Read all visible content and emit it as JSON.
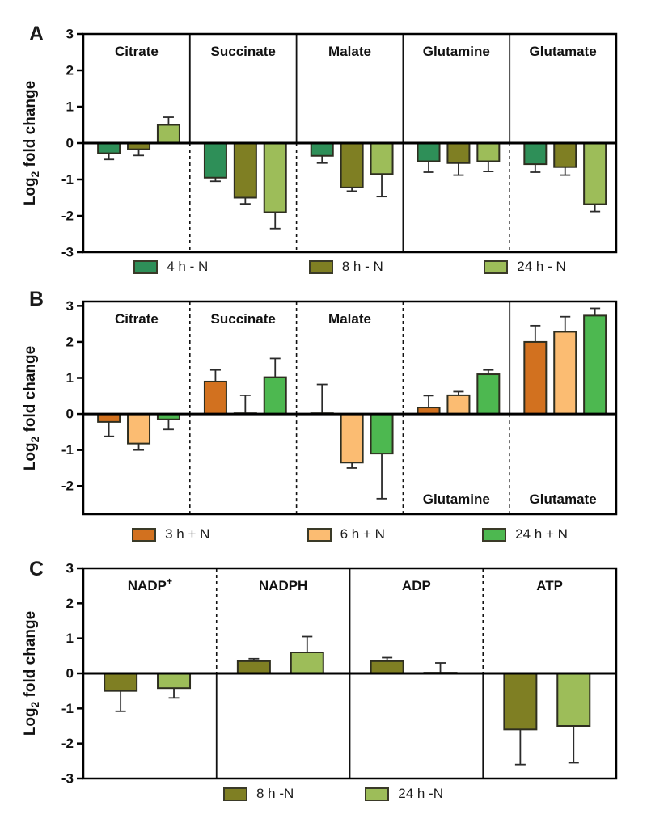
{
  "y_axis": {
    "word": "Log",
    "sub": "2",
    "rest": " fold change"
  },
  "chart_data": [
    {
      "type": "bar",
      "panel_label": "A",
      "ylabel": "Log2 fold change",
      "ylim": [
        -3,
        3
      ],
      "yticks": [
        3,
        2,
        1,
        0,
        -1,
        -2,
        -3
      ],
      "grid": false,
      "legend_position": "bottom",
      "categories": [
        {
          "name": "Citrate",
          "sup": "",
          "label_pos": "top"
        },
        {
          "name": "Succinate",
          "sup": "",
          "label_pos": "top"
        },
        {
          "name": "Malate",
          "sup": "",
          "label_pos": "top"
        },
        {
          "name": "Glutamine",
          "sup": "",
          "label_pos": "top"
        },
        {
          "name": "Glutamate",
          "sup": "",
          "label_pos": "top"
        }
      ],
      "separators": [
        {
          "above": "solid",
          "below": "dashed"
        },
        {
          "above": "solid",
          "below": "dashed"
        },
        {
          "above": "solid",
          "below": "solid"
        },
        {
          "above": "solid",
          "below": "dashed"
        }
      ],
      "series": [
        {
          "name": "4 h - N",
          "color": "#2e8f58",
          "values": [
            -0.28,
            -0.95,
            -0.35,
            -0.5,
            -0.58
          ],
          "errors": [
            0.17,
            0.1,
            0.2,
            0.3,
            0.22
          ]
        },
        {
          "name": "8 h - N",
          "color": "#7f7f23",
          "values": [
            -0.17,
            -1.5,
            -1.22,
            -0.55,
            -0.66
          ],
          "errors": [
            0.17,
            0.17,
            0.1,
            0.33,
            0.22
          ]
        },
        {
          "name": "24 h - N",
          "color": "#9dbd59",
          "values": [
            0.5,
            -1.9,
            -0.85,
            -0.5,
            -1.68
          ],
          "errors": [
            0.21,
            0.45,
            0.62,
            0.28,
            0.2
          ]
        }
      ]
    },
    {
      "type": "bar",
      "panel_label": "B",
      "ylabel": "Log2 fold change",
      "ylim": [
        -2.78,
        3.12
      ],
      "yticks": [
        3,
        2,
        1,
        0,
        -1,
        -2
      ],
      "grid": false,
      "legend_position": "bottom",
      "categories": [
        {
          "name": "Citrate",
          "sup": "",
          "label_pos": "top"
        },
        {
          "name": "Succinate",
          "sup": "",
          "label_pos": "top"
        },
        {
          "name": "Malate",
          "sup": "",
          "label_pos": "top"
        },
        {
          "name": "Glutamine",
          "sup": "",
          "label_pos": "bottom"
        },
        {
          "name": "Glutamate",
          "sup": "",
          "label_pos": "bottom"
        }
      ],
      "separators": [
        {
          "above": "dashed",
          "below": "dashed"
        },
        {
          "above": "dashed",
          "below": "dashed"
        },
        {
          "above": "dashed",
          "below": "dashed"
        },
        {
          "above": "solid",
          "below": "dashed"
        }
      ],
      "series": [
        {
          "name": "3 h + N",
          "color": "#d2711f",
          "values": [
            -0.22,
            0.9,
            0.02,
            0.18,
            2.0
          ],
          "errors": [
            0.4,
            0.32,
            0.8,
            0.33,
            0.45
          ]
        },
        {
          "name": "6 h + N",
          "color": "#fbbc72",
          "values": [
            -0.82,
            0.02,
            -1.35,
            0.52,
            2.28
          ],
          "errors": [
            0.18,
            0.5,
            0.15,
            0.1,
            0.42
          ]
        },
        {
          "name": "24 h + N",
          "color": "#4db850",
          "values": [
            -0.15,
            1.02,
            -1.1,
            1.1,
            2.73
          ],
          "errors": [
            0.28,
            0.52,
            1.25,
            0.12,
            0.2
          ]
        }
      ]
    },
    {
      "type": "bar",
      "panel_label": "C",
      "ylabel": "Log2 fold change",
      "ylim": [
        -3,
        3
      ],
      "yticks": [
        3,
        2,
        1,
        0,
        -1,
        -2,
        -3
      ],
      "grid": false,
      "legend_position": "bottom",
      "categories": [
        {
          "name": "NADP",
          "sup": "+",
          "label_pos": "top"
        },
        {
          "name": "NADPH",
          "sup": "",
          "label_pos": "top"
        },
        {
          "name": "ADP",
          "sup": "",
          "label_pos": "top"
        },
        {
          "name": "ATP",
          "sup": "",
          "label_pos": "top"
        }
      ],
      "separators": [
        {
          "above": "dashed",
          "below": "solid"
        },
        {
          "above": "solid",
          "below": "solid"
        },
        {
          "above": "dashed",
          "below": "solid"
        }
      ],
      "series": [
        {
          "name": "8 h -N",
          "color": "#7f7f23",
          "values": [
            -0.5,
            0.35,
            0.35,
            -1.6
          ],
          "errors": [
            0.58,
            0.07,
            0.1,
            1.0
          ]
        },
        {
          "name": "24 h -N",
          "color": "#9dbd59",
          "values": [
            -0.42,
            0.6,
            0.02,
            -1.5
          ],
          "errors": [
            0.28,
            0.45,
            0.28,
            1.05
          ]
        }
      ]
    }
  ]
}
